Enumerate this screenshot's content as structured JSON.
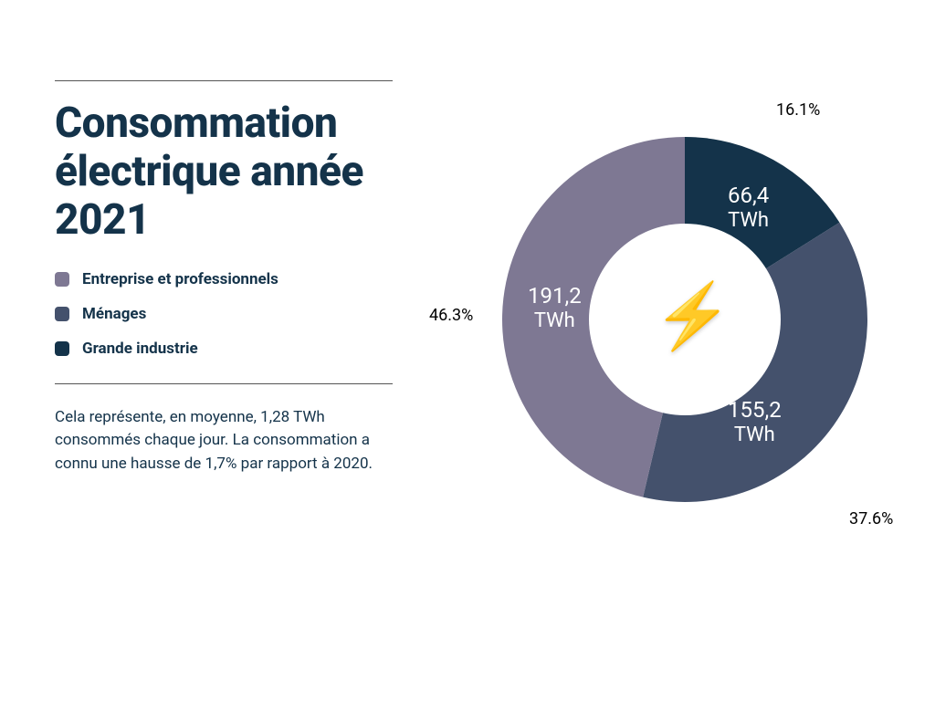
{
  "title": "Consommation électrique année 2021",
  "legend": [
    {
      "label": "Entreprise et professionnels",
      "color": "#7e7893"
    },
    {
      "label": "Ménages",
      "color": "#44516c"
    },
    {
      "label": "Grande industrie",
      "color": "#14334a"
    }
  ],
  "description": "Cela représente, en moyenne, 1,28 TWh consommés chaque jour. La consommation a connu une hausse de 1,7% par rapport à 2020.",
  "chart": {
    "type": "donut",
    "outer_radius": 200,
    "inner_radius": 105,
    "background_color": "#ffffff",
    "center_icon": "⚡",
    "value_label_fontsize": 24,
    "value_label_color": "#ffffff",
    "percent_label_fontsize": 18,
    "percent_label_color": "#000000",
    "slices": [
      {
        "name": "Grande industrie",
        "value_twh": 66.4,
        "value_label": "66,4",
        "unit": "TWh",
        "percent_label": "16.1%",
        "color": "#14334a"
      },
      {
        "name": "Ménages",
        "value_twh": 155.2,
        "value_label": "155,2",
        "unit": "TWh",
        "percent_label": "37.6%",
        "color": "#44516c"
      },
      {
        "name": "Entreprise et professionnels",
        "value_twh": 191.2,
        "value_label": "191,2",
        "unit": "TWh",
        "percent_label": "46.3%",
        "color": "#7e7893"
      }
    ]
  },
  "colors": {
    "title_color": "#14334a",
    "text_color": "#14334a",
    "rule_color": "#555555"
  }
}
